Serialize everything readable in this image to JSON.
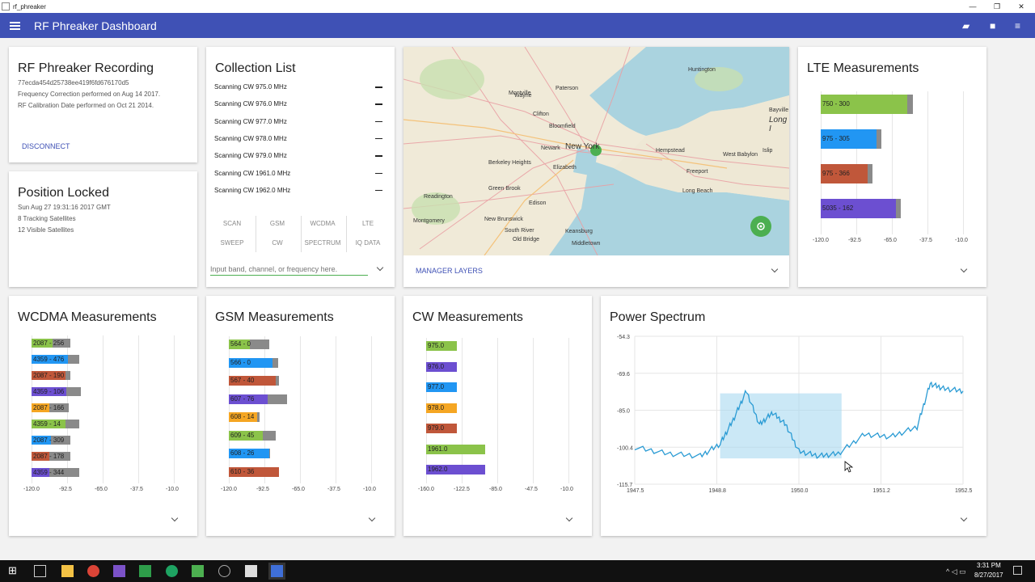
{
  "window": {
    "title": "rf_phreaker"
  },
  "appbar": {
    "title": "RF Phreaker Dashboard"
  },
  "recording": {
    "title": "RF Phreaker Recording",
    "serial": "77ecda454d25738ee419f6fd676170d5",
    "freq_correction": "Frequency Correction performed on Aug 14 2017.",
    "rf_calibration": "RF Calibration Date performed on Oct 21 2014.",
    "disconnect": "DISCONNECT"
  },
  "position": {
    "title": "Position Locked",
    "time": "Sun Aug 27 19:31:16 2017 GMT",
    "tracking": "8 Tracking Satellites",
    "visible": "12 Visible Satellites"
  },
  "collection": {
    "title": "Collection List",
    "items": [
      "Scanning CW 975.0 MHz",
      "Scanning CW 976.0 MHz",
      "Scanning CW 977.0 MHz",
      "Scanning CW 978.0 MHz",
      "Scanning CW 979.0 MHz",
      "Scanning CW 1961.0 MHz",
      "Scanning CW 1962.0 MHz"
    ],
    "tabs_row1": [
      "SCAN",
      "GSM",
      "WCDMA",
      "LTE"
    ],
    "tabs_row2": [
      "SWEEP",
      "CW",
      "SPECTRUM",
      "IQ DATA"
    ],
    "input_placeholder": "Input band, channel, or frequency here."
  },
  "map": {
    "manager_layers": "MANAGER LAYERS",
    "places": [
      "Paterson",
      "Huntington",
      "Bayville",
      "Long I",
      "Wayne",
      "Montville",
      "Clifton",
      "Bloomfield",
      "Newark",
      "New York",
      "Elizabeth",
      "Berkeley Heights",
      "Hempstead",
      "Freeport",
      "West Babylon",
      "Islip",
      "Long Beach",
      "Readington",
      "Green Brook",
      "Edison",
      "New Brunswick",
      "Montgomery",
      "South River",
      "Old Bridge",
      "Keansburg",
      "Middletown"
    ]
  },
  "lte": {
    "title": "LTE Measurements",
    "axis": [
      "-120.0",
      "-92.5",
      "-65.0",
      "-37.5",
      "-10.0"
    ],
    "bars": [
      {
        "label": "750 - 300",
        "value": -53,
        "max": -49,
        "color": "#8bc34a"
      },
      {
        "label": "975 - 305",
        "value": -77,
        "max": -73,
        "color": "#2196f3"
      },
      {
        "label": "975 - 366",
        "value": -84,
        "max": -80,
        "color": "#c0573a"
      },
      {
        "label": "5035 - 162",
        "value": -62,
        "max": -58,
        "color": "#6c4fd1"
      }
    ]
  },
  "wcdma": {
    "title": "WCDMA Measurements",
    "axis": [
      "-120.0",
      "-92.5",
      "-65.0",
      "-37.5",
      "-10.0"
    ],
    "bars": [
      {
        "label": "2087 - 256",
        "value": -104,
        "max": -90,
        "color": "#8bc34a"
      },
      {
        "label": "4359 - 476",
        "value": -92,
        "max": -83,
        "color": "#2196f3"
      },
      {
        "label": "2087 - 190",
        "value": -94,
        "max": -90,
        "color": "#c0573a"
      },
      {
        "label": "4359 - 106",
        "value": -93,
        "max": -82,
        "color": "#6c4fd1"
      },
      {
        "label": "2087 - 166",
        "value": -106,
        "max": -91,
        "color": "#f5a623"
      },
      {
        "label": "4359 - 14",
        "value": -94,
        "max": -83,
        "color": "#8bc34a"
      },
      {
        "label": "2087 - 309",
        "value": -105,
        "max": -90,
        "color": "#2196f3"
      },
      {
        "label": "2087 - 178",
        "value": -106,
        "max": -90,
        "color": "#c0573a"
      },
      {
        "label": "4359 - 344",
        "value": -106,
        "max": -83,
        "color": "#6c4fd1"
      }
    ]
  },
  "gsm": {
    "title": "GSM Measurements",
    "axis": [
      "-120.0",
      "-92.5",
      "-65.0",
      "-37.5",
      "-10.0"
    ],
    "bars": [
      {
        "label": "564 - 0",
        "value": -104,
        "max": -89,
        "color": "#8bc34a"
      },
      {
        "label": "566 - 0",
        "value": -86,
        "max": -82,
        "color": "#2196f3"
      },
      {
        "label": "567 - 40",
        "value": -84,
        "max": -81,
        "color": "#c0573a"
      },
      {
        "label": "607 - 76",
        "value": -90,
        "max": -75,
        "color": "#6c4fd1"
      },
      {
        "label": "608 - 14",
        "value": -98,
        "max": -96,
        "color": "#f5a623"
      },
      {
        "label": "609 - 45",
        "value": -94,
        "max": -84,
        "color": "#8bc34a"
      },
      {
        "label": "608 - 26",
        "value": -89,
        "max": -88,
        "color": "#2196f3"
      },
      {
        "label": "610 - 36",
        "value": -81,
        "max": -81,
        "color": "#c0573a"
      }
    ]
  },
  "cw": {
    "title": "CW Measurements",
    "axis": [
      "-160.0",
      "-122.5",
      "-85.0",
      "-47.5",
      "-10.0"
    ],
    "bars": [
      {
        "label": "975.0",
        "value": -128,
        "color": "#8bc34a"
      },
      {
        "label": "976.0",
        "value": -128,
        "color": "#6c4fd1"
      },
      {
        "label": "977.0",
        "value": -128,
        "color": "#2196f3"
      },
      {
        "label": "978.0",
        "value": -128,
        "color": "#f5a623"
      },
      {
        "label": "979.0",
        "value": -128,
        "color": "#c0573a"
      },
      {
        "label": "1961.0",
        "value": -98,
        "color": "#8bc34a"
      },
      {
        "label": "1962.0",
        "value": -98,
        "color": "#6c4fd1"
      }
    ]
  },
  "spectrum": {
    "title": "Power Spectrum",
    "yaxis": [
      "-54.3",
      "-69.6",
      "-85.0",
      "-100.4",
      "-115.7"
    ],
    "xaxis": [
      "1947.5",
      "1948.8",
      "1950.0",
      "1951.2",
      "1952.5"
    ]
  },
  "taskbar": {
    "time": "3:31 PM",
    "date": "8/27/2017"
  },
  "chart_data": [
    {
      "type": "bar",
      "title": "LTE Measurements",
      "categories": [
        "750 - 300",
        "975 - 305",
        "975 - 366",
        "5035 - 162"
      ],
      "values": [
        -53,
        -77,
        -84,
        -62
      ],
      "xlim": [
        -120,
        -10
      ]
    },
    {
      "type": "bar",
      "title": "WCDMA Measurements",
      "categories": [
        "2087 - 256",
        "4359 - 476",
        "2087 - 190",
        "4359 - 106",
        "2087 - 166",
        "4359 - 14",
        "2087 - 309",
        "2087 - 178",
        "4359 - 344"
      ],
      "values": [
        -104,
        -92,
        -94,
        -93,
        -106,
        -94,
        -105,
        -106,
        -106
      ],
      "xlim": [
        -120,
        -10
      ]
    },
    {
      "type": "bar",
      "title": "GSM Measurements",
      "categories": [
        "564 - 0",
        "566 - 0",
        "567 - 40",
        "607 - 76",
        "608 - 14",
        "609 - 45",
        "608 - 26",
        "610 - 36"
      ],
      "values": [
        -104,
        -86,
        -84,
        -90,
        -98,
        -94,
        -89,
        -81
      ],
      "xlim": [
        -120,
        -10
      ]
    },
    {
      "type": "bar",
      "title": "CW Measurements",
      "categories": [
        "975.0",
        "976.0",
        "977.0",
        "978.0",
        "979.0",
        "1961.0",
        "1962.0"
      ],
      "values": [
        -128,
        -128,
        -128,
        -128,
        -128,
        -98,
        -98
      ],
      "xlim": [
        -160,
        -10
      ]
    },
    {
      "type": "line",
      "title": "Power Spectrum",
      "x": [
        1947.5,
        1948.0,
        1948.5,
        1948.8,
        1949.0,
        1949.2,
        1949.4,
        1949.6,
        1949.8,
        1950.0,
        1950.3,
        1950.6,
        1951.0,
        1951.4,
        1951.8,
        1952.0,
        1952.2,
        1952.5
      ],
      "y": [
        -100.4,
        -103,
        -104,
        -99,
        -89,
        -77,
        -91,
        -86,
        -91,
        -102,
        -104,
        -103,
        -95,
        -96,
        -92,
        -74,
        -76,
        -77
      ],
      "xlim": [
        1947.5,
        1952.5
      ],
      "ylim": [
        -115.7,
        -54.3
      ]
    }
  ]
}
